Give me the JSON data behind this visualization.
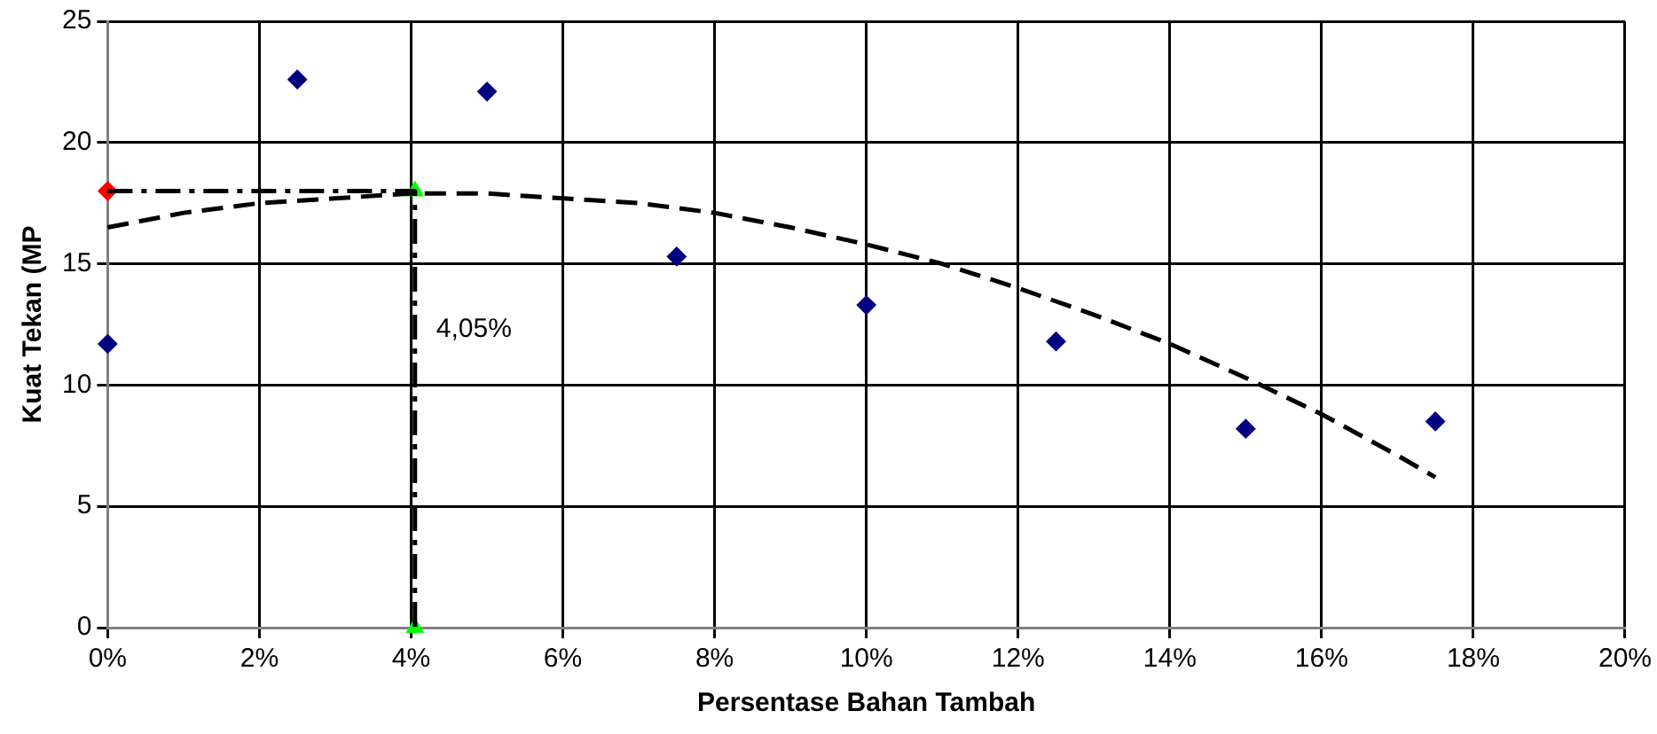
{
  "chart_data": {
    "type": "scatter",
    "xlabel": "Persentase Bahan Tambah",
    "ylabel": "Kuat Tekan (MP",
    "xlim": [
      0,
      20
    ],
    "xticks": [
      {
        "value": 0,
        "label": "0%"
      },
      {
        "value": 2,
        "label": "2%"
      },
      {
        "value": 4,
        "label": "4%"
      },
      {
        "value": 6,
        "label": "6%"
      },
      {
        "value": 8,
        "label": "8%"
      },
      {
        "value": 10,
        "label": "10%"
      },
      {
        "value": 12,
        "label": "12%"
      },
      {
        "value": 14,
        "label": "14%"
      },
      {
        "value": 16,
        "label": "16%"
      },
      {
        "value": 18,
        "label": "18%"
      },
      {
        "value": 20,
        "label": "20%"
      }
    ],
    "ylim": [
      0,
      25
    ],
    "yticks": [
      0,
      5,
      10,
      15,
      20,
      25
    ],
    "grid": true,
    "legend": false,
    "annotations": [
      {
        "text": "4,05%",
        "x": 4.05,
        "y": 12.3
      }
    ],
    "series": [
      {
        "type": "scatter",
        "marker": "diamond",
        "color": "#000080",
        "x": [
          0,
          2.5,
          5,
          7.5,
          10,
          12.5,
          15,
          17.5
        ],
        "values": [
          11.7,
          22.6,
          22.1,
          15.3,
          13.3,
          11.8,
          8.2,
          8.5
        ]
      },
      {
        "type": "line",
        "marker": "none",
        "line_style": "dashed",
        "color": "#000000",
        "x": [
          0,
          1,
          2,
          3,
          4,
          5,
          6,
          7,
          8,
          9,
          10,
          11,
          12,
          13,
          14,
          15,
          16,
          17,
          17.5
        ],
        "values": [
          16.5,
          17.1,
          17.5,
          17.7,
          17.9,
          17.9,
          17.7,
          17.5,
          17.1,
          16.5,
          15.8,
          15.0,
          14.0,
          12.9,
          11.7,
          10.3,
          8.8,
          7.1,
          6.2
        ]
      },
      {
        "type": "line",
        "marker": "none",
        "line_style": "dashdot",
        "color": "#000000",
        "x": [
          0,
          4.05,
          4.05
        ],
        "values": [
          18,
          18,
          0
        ]
      },
      {
        "type": "scatter",
        "marker": "diamond",
        "color": "#ff0000",
        "x": [
          0
        ],
        "values": [
          18
        ]
      },
      {
        "type": "scatter",
        "marker": "triangle",
        "color": "#00ff00",
        "x": [
          4.05,
          4.05
        ],
        "values": [
          18,
          0
        ]
      }
    ]
  }
}
